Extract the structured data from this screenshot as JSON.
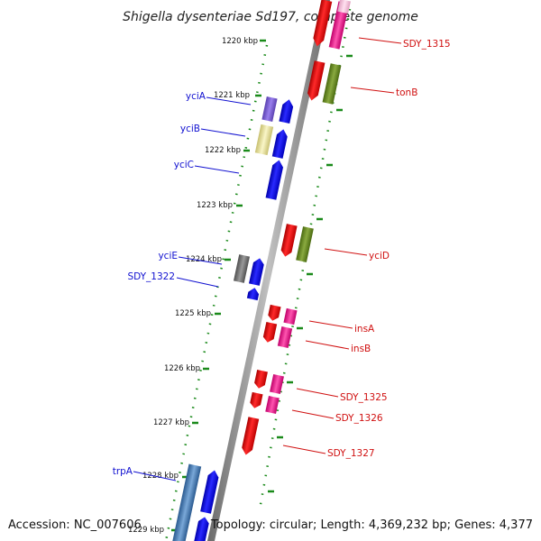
{
  "title": "Shigella dysenteriae Sd197, complete genome",
  "accession": "Accession: NC_007606",
  "topology": "Topology: circular; Length: 4,369,232 bp; Genes: 4,377",
  "kbp_labels": [
    "1220 kbp",
    "1221 kbp",
    "1222 kbp",
    "1223 kbp",
    "1224 kbp",
    "1225 kbp",
    "1226 kbp",
    "1227 kbp",
    "1228 kbp",
    "1229 kbp"
  ],
  "genes_left": [
    {
      "label": "yciA",
      "color": "#0000ee"
    },
    {
      "label": "yciB",
      "color": "#0000ee"
    },
    {
      "label": "yciC",
      "color": "#0000ee"
    },
    {
      "label": "yciE",
      "color": "#0000ee"
    },
    {
      "label": "SDY_1322",
      "color": "#0000ee"
    },
    {
      "label": "trpA",
      "color": "#0000ee"
    }
  ],
  "genes_right": [
    {
      "label": "SDY_1315",
      "color": "#dd0000"
    },
    {
      "label": "tonB",
      "color": "#dd0000"
    },
    {
      "label": "yciD",
      "color": "#dd0000"
    },
    {
      "label": "insA",
      "color": "#dd0000"
    },
    {
      "label": "insB",
      "color": "#dd0000"
    },
    {
      "label": "SDY_1325",
      "color": "#dd0000"
    },
    {
      "label": "SDY_1326",
      "color": "#dd0000"
    },
    {
      "label": "SDY_1327",
      "color": "#dd0000"
    }
  ],
  "colors": {
    "backbone": "#8a8a8a",
    "tick": "#1a8a1a",
    "forward_gene": "#0000ee",
    "reverse_gene": "#ee0000",
    "cog_purple": "#7a5fd0",
    "cog_yellow": "#e8e0a0",
    "cog_grey": "#707070",
    "cog_pink": "#ee1188",
    "cog_olive": "#6a8a20",
    "cog_steel": "#4a7ab0"
  }
}
